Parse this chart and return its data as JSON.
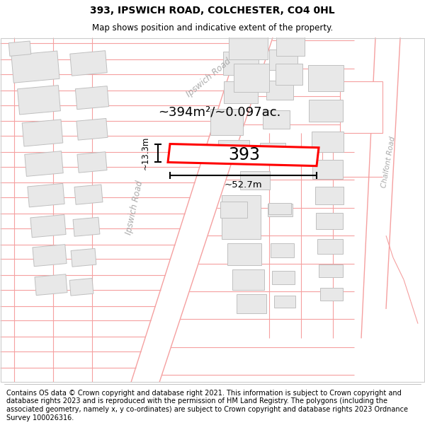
{
  "title": "393, IPSWICH ROAD, COLCHESTER, CO4 0HL",
  "subtitle": "Map shows position and indicative extent of the property.",
  "footer": "Contains OS data © Crown copyright and database right 2021. This information is subject to Crown copyright and database rights 2023 and is reproduced with the permission of HM Land Registry. The polygons (including the associated geometry, namely x, y co-ordinates) are subject to Crown copyright and database rights 2023 Ordnance Survey 100026316.",
  "map_bg": "#ffffff",
  "road_color": "#f5a0a0",
  "building_fill": "#e8e8e8",
  "building_edge": "#c0c0c0",
  "highlight_edge": "#ff0000",
  "highlight_label": "393",
  "area_text": "~394m²/~0.097ac.",
  "dim_width": "~52.7m",
  "dim_height": "~13.3m",
  "road1_label": "Ipswich Road",
  "road2_label": "Ipswich Road",
  "road3_label": "Chalfont Road",
  "title_fontsize": 10,
  "subtitle_fontsize": 8.5,
  "footer_fontsize": 7.0
}
